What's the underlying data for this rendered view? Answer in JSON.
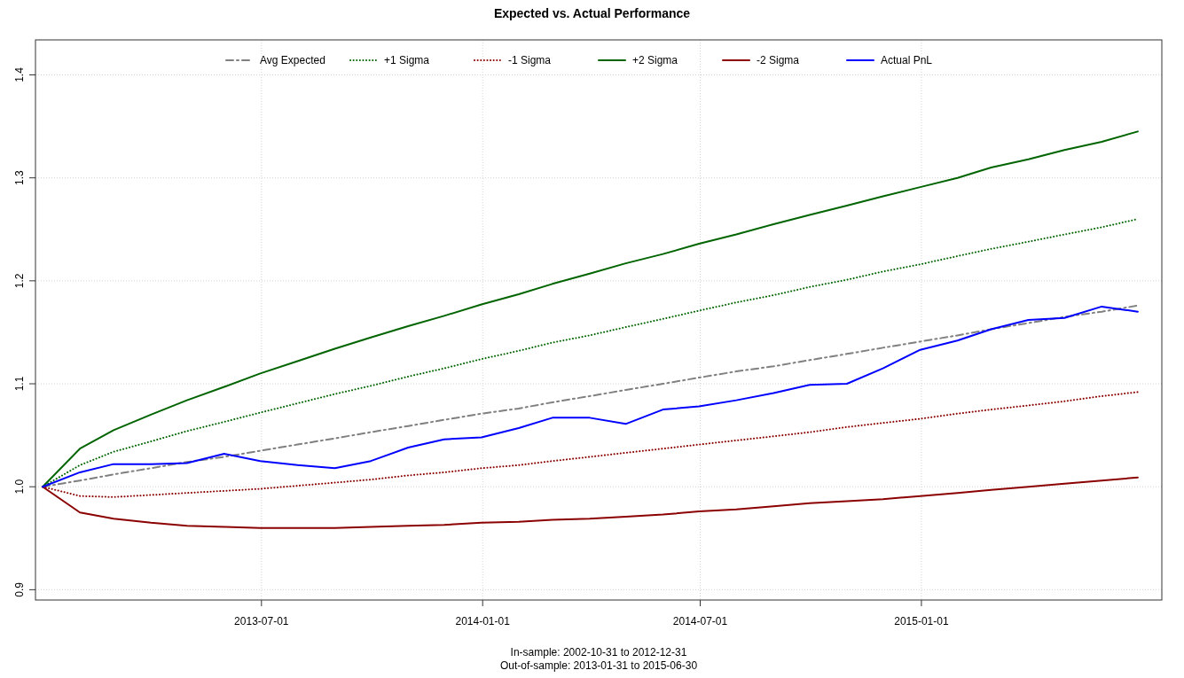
{
  "chart_data": {
    "type": "line",
    "title": "Expected vs. Actual Performance",
    "x": [
      "2012-12-31",
      "2013-01-31",
      "2013-02-28",
      "2013-03-31",
      "2013-04-30",
      "2013-05-31",
      "2013-06-30",
      "2013-07-31",
      "2013-08-31",
      "2013-09-30",
      "2013-10-31",
      "2013-11-30",
      "2013-12-31",
      "2014-01-31",
      "2014-02-28",
      "2014-03-31",
      "2014-04-30",
      "2014-05-31",
      "2014-06-30",
      "2014-07-31",
      "2014-08-31",
      "2014-09-30",
      "2014-10-31",
      "2014-11-30",
      "2014-12-31",
      "2015-01-31",
      "2015-02-28",
      "2015-03-31",
      "2015-04-30",
      "2015-05-31",
      "2015-06-30"
    ],
    "series": [
      {
        "name": "Avg Expected",
        "color": "#808080",
        "line_style": "dashed",
        "values": [
          1.0,
          1.006,
          1.012,
          1.018,
          1.024,
          1.029,
          1.035,
          1.041,
          1.047,
          1.053,
          1.059,
          1.065,
          1.071,
          1.076,
          1.082,
          1.088,
          1.094,
          1.1,
          1.106,
          1.112,
          1.117,
          1.123,
          1.129,
          1.135,
          1.141,
          1.147,
          1.153,
          1.159,
          1.165,
          1.17,
          1.176
        ]
      },
      {
        "name": "+1 Sigma",
        "color": "#006400",
        "line_style": "dotted",
        "values": [
          1.0,
          1.021,
          1.034,
          1.044,
          1.054,
          1.063,
          1.072,
          1.081,
          1.09,
          1.098,
          1.107,
          1.115,
          1.124,
          1.132,
          1.14,
          1.147,
          1.155,
          1.163,
          1.171,
          1.179,
          1.186,
          1.194,
          1.201,
          1.209,
          1.216,
          1.224,
          1.231,
          1.238,
          1.245,
          1.252,
          1.26
        ]
      },
      {
        "name": "-1 Sigma",
        "color": "#8b0000",
        "line_style": "dotted",
        "values": [
          1.0,
          0.991,
          0.99,
          0.992,
          0.994,
          0.996,
          0.998,
          1.001,
          1.004,
          1.007,
          1.011,
          1.014,
          1.018,
          1.021,
          1.025,
          1.029,
          1.033,
          1.037,
          1.041,
          1.045,
          1.049,
          1.053,
          1.058,
          1.062,
          1.066,
          1.071,
          1.075,
          1.079,
          1.083,
          1.088,
          1.092
        ]
      },
      {
        "name": "+2 Sigma",
        "color": "#006400",
        "line_style": "solid",
        "values": [
          1.0,
          1.037,
          1.055,
          1.07,
          1.084,
          1.097,
          1.11,
          1.122,
          1.134,
          1.145,
          1.156,
          1.166,
          1.177,
          1.187,
          1.197,
          1.207,
          1.217,
          1.226,
          1.236,
          1.245,
          1.255,
          1.264,
          1.273,
          1.282,
          1.291,
          1.3,
          1.31,
          1.318,
          1.327,
          1.335,
          1.345
        ]
      },
      {
        "name": "-2 Sigma",
        "color": "#8b0000",
        "line_style": "solid",
        "values": [
          1.0,
          0.975,
          0.969,
          0.965,
          0.962,
          0.961,
          0.96,
          0.96,
          0.96,
          0.961,
          0.962,
          0.963,
          0.965,
          0.966,
          0.968,
          0.969,
          0.971,
          0.973,
          0.976,
          0.978,
          0.981,
          0.984,
          0.986,
          0.988,
          0.991,
          0.994,
          0.997,
          1.0,
          1.003,
          1.006,
          1.009
        ]
      },
      {
        "name": "Actual PnL",
        "color": "#0000ff",
        "line_style": "solid",
        "values": [
          1.0,
          1.014,
          1.022,
          1.022,
          1.023,
          1.032,
          1.025,
          1.021,
          1.018,
          1.025,
          1.038,
          1.046,
          1.048,
          1.057,
          1.067,
          1.067,
          1.061,
          1.075,
          1.078,
          1.084,
          1.091,
          1.099,
          1.1,
          1.115,
          1.133,
          1.142,
          1.153,
          1.162,
          1.164,
          1.175,
          1.17
        ]
      }
    ],
    "xlim": [
      "2012-12-25",
      "2015-07-20"
    ],
    "xticks": [
      {
        "value": "2013-07-01",
        "label": "2013-07-01"
      },
      {
        "value": "2014-01-01",
        "label": "2014-01-01"
      },
      {
        "value": "2014-07-01",
        "label": "2014-07-01"
      },
      {
        "value": "2015-01-01",
        "label": "2015-01-01"
      }
    ],
    "ylim": [
      0.89,
      1.434
    ],
    "yticks": [
      {
        "value": 0.9,
        "label": "0.9"
      },
      {
        "value": 1.0,
        "label": "1.0"
      },
      {
        "value": 1.1,
        "label": "1.1"
      },
      {
        "value": 1.2,
        "label": "1.2"
      },
      {
        "value": 1.3,
        "label": "1.3"
      },
      {
        "value": 1.4,
        "label": "1.4"
      }
    ],
    "grid": true,
    "legend": "top",
    "annotations": [
      "In-sample: 2002-10-31 to 2012-12-31",
      "Out-of-sample: 2013-01-31 to 2015-06-30"
    ]
  }
}
